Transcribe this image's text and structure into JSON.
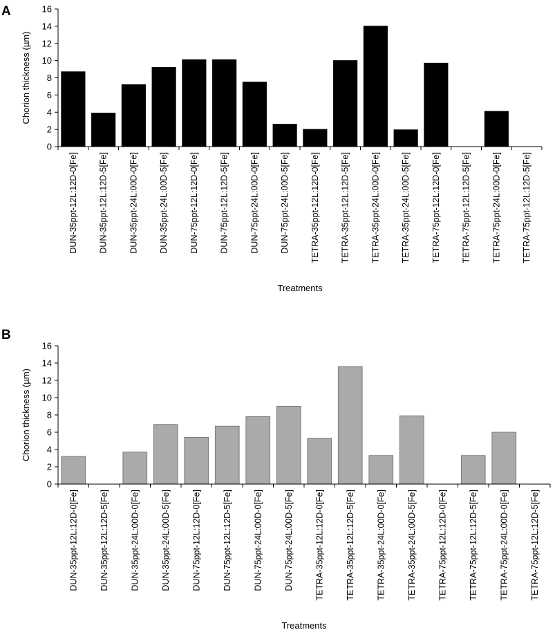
{
  "chart_data": [
    {
      "panel_label": "A",
      "type": "bar",
      "categories": [
        "DUN-35ppt-12L:12D-0[Fe]",
        "DUN-35ppt-12L:12D-5[Fe]",
        "DUN-35ppt-24L:00D-0[Fe]",
        "DUN-35ppt-24L:00D-5[Fe]",
        "DUN-75ppt-12L:12D-0[Fe]",
        "DUN-75ppt-12L:12D-5[Fe]",
        "DUN-75ppt-24L:00D-0[Fe]",
        "DUN-75ppt-24L:00D-5[Fe]",
        "TETRA-35ppt-12L:12D-0[Fe]",
        "TETRA-35ppt-12L:12D-5[Fe]",
        "TETRA-35ppt-24L:00D-0[Fe]",
        "TETRA-35ppt-24L:00D-5[Fe]",
        "TETRA-75ppt-12L:12D-0[Fe]",
        "TETRA-75ppt-12L:12D-5[Fe]",
        "TETRA-75ppt-24L:00D-0[Fe]",
        "TETRA-75ppt-12L:12D-5[Fe]"
      ],
      "values": [
        8.7,
        3.9,
        7.2,
        9.2,
        10.1,
        10.1,
        7.5,
        2.6,
        2.0,
        10.0,
        14.0,
        1.95,
        9.7,
        0,
        4.1,
        0
      ],
      "xlabel": "Treatments",
      "ylabel": "Chorion thickness (µm)",
      "ylim": [
        0,
        16
      ],
      "yticks": [
        0,
        2,
        4,
        6,
        8,
        10,
        12,
        14,
        16
      ],
      "bar_color": "#000000",
      "bar_stroke": "#000000",
      "grid": false
    },
    {
      "panel_label": "B",
      "type": "bar",
      "categories": [
        "DUN-35ppt-12L:12D-0[Fe]",
        "DUN-35ppt-12L:12D-5[Fe]",
        "DUN-35ppt-24L:00D-0[Fe]",
        "DUN-35ppt-24L:00D-5[Fe]",
        "DUN-75ppt-12L:12D-0[Fe]",
        "DUN-75ppt-12L:12D-5[Fe]",
        "DUN-75ppt-24L:00D-0[Fe]",
        "DUN-75ppt-24L:00D-5[Fe]",
        "TETRA-35ppt-12L:12D-0[Fe]",
        "TETRA-35ppt-12L:12D-5[Fe]",
        "TETRA-35ppt-24L:00D-0[Fe]",
        "TETRA-35ppt-24L:00D-5[Fe]",
        "TETRA-75ppt-12L:12D-0[Fe]",
        "TETRA-75ppt-12L:12D-5[Fe]",
        "TETRA-75ppt-24L:00D-0[Fe]",
        "TETRA-75ppt-12L:12D-5[Fe]"
      ],
      "values": [
        3.2,
        0,
        3.7,
        6.9,
        5.4,
        6.7,
        7.8,
        9.0,
        5.3,
        13.6,
        3.3,
        7.9,
        0,
        3.3,
        6.0,
        0
      ],
      "xlabel": "Treatments",
      "ylabel": "Chorion thickness (µm)",
      "ylim": [
        0,
        16
      ],
      "yticks": [
        0,
        2,
        4,
        6,
        8,
        10,
        12,
        14,
        16
      ],
      "bar_color": "#aaaaaa",
      "bar_stroke": "#7a7a7a",
      "grid": false
    }
  ]
}
